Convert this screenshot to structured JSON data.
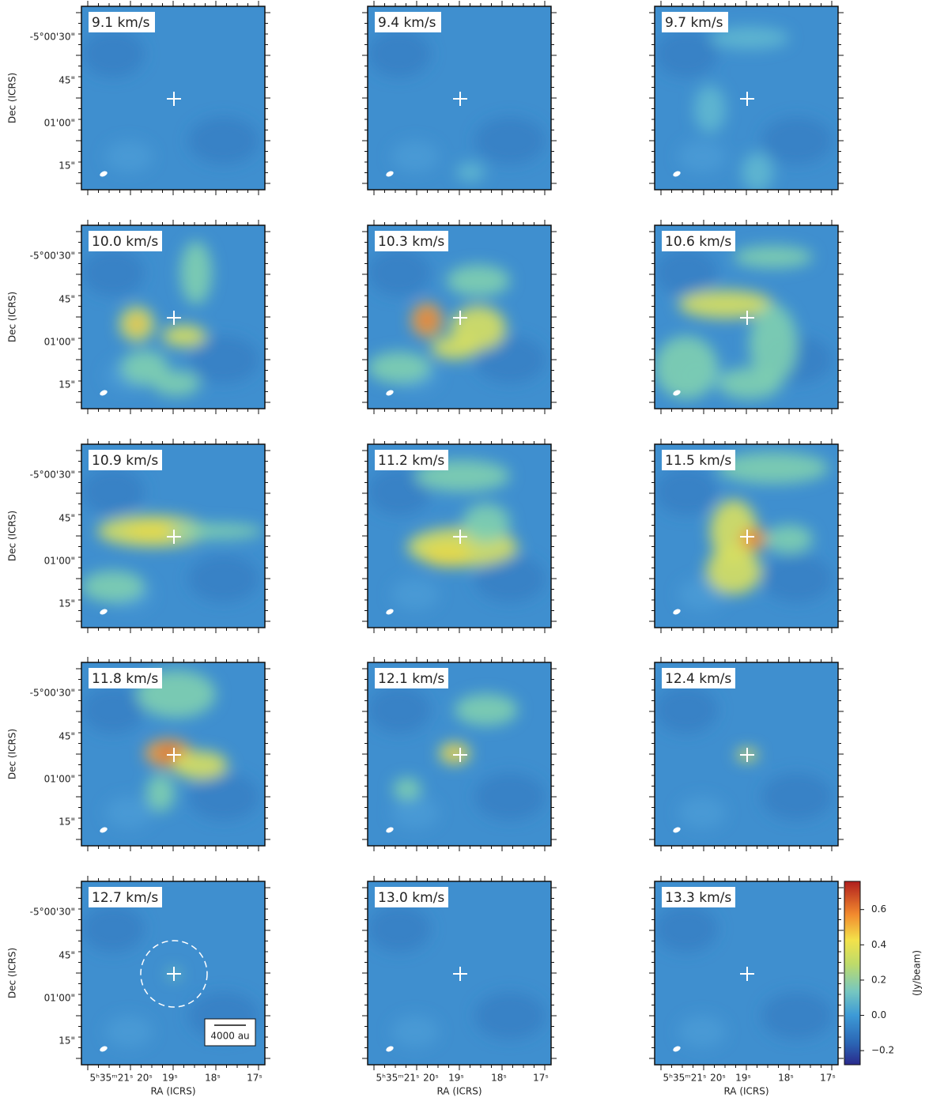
{
  "panels": [
    {
      "label": "9.1 km/s"
    },
    {
      "label": "9.4 km/s"
    },
    {
      "label": "9.7 km/s"
    },
    {
      "label": "10.0 km/s"
    },
    {
      "label": "10.3 km/s"
    },
    {
      "label": "10.6 km/s"
    },
    {
      "label": "10.9 km/s"
    },
    {
      "label": "11.2 km/s"
    },
    {
      "label": "11.5 km/s"
    },
    {
      "label": "11.8 km/s"
    },
    {
      "label": "12.1 km/s"
    },
    {
      "label": "12.4 km/s"
    },
    {
      "label": "12.7 km/s"
    },
    {
      "label": "13.0 km/s"
    },
    {
      "label": "13.3 km/s"
    }
  ],
  "y_axis": {
    "label": "Dec (ICRS)",
    "ticks": [
      "-5°00'30\"",
      "45\"",
      "01'00\"",
      "15\""
    ]
  },
  "x_axis": {
    "label": "RA (ICRS)",
    "ticks": [
      "5ʰ35ᵐ21ˢ",
      "20ˢ",
      "19ˢ",
      "18ˢ",
      "17ˢ"
    ]
  },
  "scale_bar": "4000 au",
  "colorbar": {
    "label": "(Jy/beam)",
    "ylim": [
      -0.28,
      0.76
    ],
    "yticks": [
      {
        "value": -0.2,
        "label": "−0.2"
      },
      {
        "value": 0,
        "label": "0.0"
      },
      0.2,
      0.4,
      0.6
    ]
  }
}
